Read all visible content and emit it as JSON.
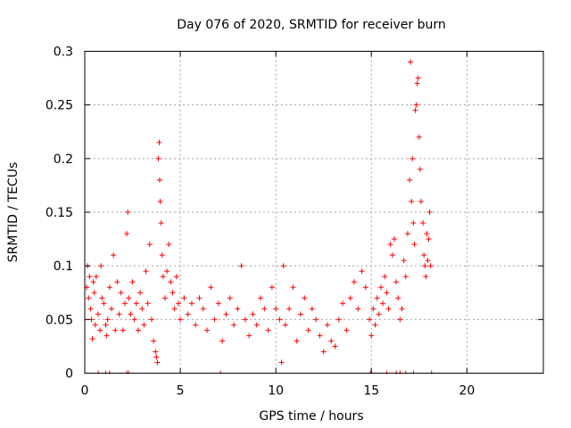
{
  "chart_data": {
    "type": "scatter",
    "title": "Day 076 of 2020, SRMTID for receiver burn",
    "xlabel": "GPS time / hours",
    "ylabel": "SRMTID / TECUs",
    "xlim": [
      0,
      24
    ],
    "ylim": [
      0,
      0.3
    ],
    "xticks": [
      0,
      5,
      10,
      15,
      20
    ],
    "xtick_labels": [
      "0",
      "5",
      "10",
      "15",
      "20"
    ],
    "yticks": [
      0,
      0.05,
      0.1,
      0.15,
      0.2,
      0.25,
      0.3
    ],
    "ytick_labels": [
      "0",
      "0.05",
      "0.1",
      "0.15",
      "0.2",
      "0.25",
      "0.3"
    ],
    "grid": true,
    "marker": "plus",
    "color": "#ff0000",
    "series": [
      {
        "name": "SRMTID",
        "points": [
          [
            0.1,
            0.08
          ],
          [
            0.15,
            0.1
          ],
          [
            0.2,
            0.07
          ],
          [
            0.25,
            0.09
          ],
          [
            0.3,
            0.06
          ],
          [
            0.35,
            0.05
          ],
          [
            0.4,
            0.032
          ],
          [
            0.45,
            0.085
          ],
          [
            0.5,
            0.075
          ],
          [
            0.55,
            0.045
          ],
          [
            0.6,
            0.09
          ],
          [
            0.7,
            0.055
          ],
          [
            0.8,
            0.04
          ],
          [
            0.85,
            0.1
          ],
          [
            0.9,
            0.07
          ],
          [
            1.0,
            0.065
          ],
          [
            1.1,
            0.045
          ],
          [
            1.15,
            0.035
          ],
          [
            1.2,
            0.05
          ],
          [
            1.3,
            0.08
          ],
          [
            1.4,
            0.06
          ],
          [
            1.5,
            0.11
          ],
          [
            1.6,
            0.04
          ],
          [
            1.7,
            0.085
          ],
          [
            1.8,
            0.055
          ],
          [
            1.9,
            0.075
          ],
          [
            2.0,
            0.04
          ],
          [
            2.1,
            0.065
          ],
          [
            2.2,
            0.13
          ],
          [
            2.25,
            0.15
          ],
          [
            2.3,
            0.07
          ],
          [
            2.4,
            0.055
          ],
          [
            2.5,
            0.085
          ],
          [
            2.6,
            0.05
          ],
          [
            2.7,
            0.065
          ],
          [
            2.8,
            0.04
          ],
          [
            2.9,
            0.075
          ],
          [
            3.0,
            0.06
          ],
          [
            3.1,
            0.045
          ],
          [
            3.2,
            0.095
          ],
          [
            3.3,
            0.065
          ],
          [
            3.4,
            0.12
          ],
          [
            3.5,
            0.05
          ],
          [
            3.6,
            0.03
          ],
          [
            3.7,
            0.02
          ],
          [
            3.75,
            0.015
          ],
          [
            3.8,
            0.01
          ],
          [
            3.85,
            0.2
          ],
          [
            3.9,
            0.215
          ],
          [
            3.92,
            0.18
          ],
          [
            3.95,
            0.16
          ],
          [
            4.0,
            0.14
          ],
          [
            4.05,
            0.11
          ],
          [
            4.1,
            0.09
          ],
          [
            4.2,
            0.07
          ],
          [
            4.3,
            0.095
          ],
          [
            4.4,
            0.12
          ],
          [
            4.5,
            0.085
          ],
          [
            4.6,
            0.075
          ],
          [
            4.7,
            0.06
          ],
          [
            4.8,
            0.09
          ],
          [
            4.9,
            0.065
          ],
          [
            5.0,
            0.05
          ],
          [
            5.2,
            0.07
          ],
          [
            5.4,
            0.055
          ],
          [
            5.6,
            0.065
          ],
          [
            5.8,
            0.045
          ],
          [
            6.0,
            0.07
          ],
          [
            6.2,
            0.06
          ],
          [
            6.4,
            0.04
          ],
          [
            6.6,
            0.08
          ],
          [
            6.8,
            0.05
          ],
          [
            7.0,
            0.065
          ],
          [
            7.2,
            0.03
          ],
          [
            7.4,
            0.055
          ],
          [
            7.6,
            0.07
          ],
          [
            7.8,
            0.045
          ],
          [
            8.0,
            0.06
          ],
          [
            8.2,
            0.1
          ],
          [
            8.4,
            0.05
          ],
          [
            8.6,
            0.035
          ],
          [
            8.8,
            0.055
          ],
          [
            9.0,
            0.045
          ],
          [
            9.2,
            0.07
          ],
          [
            9.4,
            0.06
          ],
          [
            9.6,
            0.04
          ],
          [
            9.8,
            0.08
          ],
          [
            10.0,
            0.06
          ],
          [
            10.2,
            0.05
          ],
          [
            10.3,
            0.01
          ],
          [
            10.4,
            0.1
          ],
          [
            10.5,
            0.045
          ],
          [
            10.7,
            0.06
          ],
          [
            10.9,
            0.08
          ],
          [
            11.1,
            0.03
          ],
          [
            11.3,
            0.055
          ],
          [
            11.5,
            0.07
          ],
          [
            11.7,
            0.04
          ],
          [
            11.9,
            0.06
          ],
          [
            12.1,
            0.05
          ],
          [
            12.3,
            0.035
          ],
          [
            12.5,
            0.02
          ],
          [
            12.7,
            0.045
          ],
          [
            12.9,
            0.03
          ],
          [
            13.1,
            0.025
          ],
          [
            13.3,
            0.05
          ],
          [
            13.5,
            0.065
          ],
          [
            13.7,
            0.04
          ],
          [
            13.9,
            0.07
          ],
          [
            14.1,
            0.085
          ],
          [
            14.3,
            0.06
          ],
          [
            14.5,
            0.095
          ],
          [
            14.7,
            0.08
          ],
          [
            14.9,
            0.05
          ],
          [
            15.0,
            0.035
          ],
          [
            15.1,
            0.06
          ],
          [
            15.2,
            0.045
          ],
          [
            15.3,
            0.07
          ],
          [
            15.4,
            0.055
          ],
          [
            15.5,
            0.08
          ],
          [
            15.6,
            0.065
          ],
          [
            15.7,
            0.09
          ],
          [
            15.8,
            0.075
          ],
          [
            15.9,
            0.06
          ],
          [
            16.0,
            0.12
          ],
          [
            16.1,
            0.11
          ],
          [
            16.2,
            0.125
          ],
          [
            16.3,
            0.085
          ],
          [
            16.4,
            0.07
          ],
          [
            16.5,
            0.05
          ],
          [
            16.6,
            0.06
          ],
          [
            16.7,
            0.105
          ],
          [
            16.8,
            0.09
          ],
          [
            16.9,
            0.13
          ],
          [
            17.0,
            0.18
          ],
          [
            17.05,
            0.29
          ],
          [
            17.1,
            0.16
          ],
          [
            17.15,
            0.2
          ],
          [
            17.2,
            0.14
          ],
          [
            17.25,
            0.12
          ],
          [
            17.3,
            0.245
          ],
          [
            17.35,
            0.25
          ],
          [
            17.4,
            0.27
          ],
          [
            17.45,
            0.275
          ],
          [
            17.5,
            0.22
          ],
          [
            17.55,
            0.19
          ],
          [
            17.6,
            0.16
          ],
          [
            17.7,
            0.14
          ],
          [
            17.75,
            0.11
          ],
          [
            17.8,
            0.1
          ],
          [
            17.85,
            0.09
          ],
          [
            17.9,
            0.13
          ],
          [
            17.95,
            0.105
          ],
          [
            18.0,
            0.125
          ],
          [
            18.05,
            0.15
          ],
          [
            18.1,
            0.1
          ]
        ]
      }
    ],
    "baseline_marks_x": [
      0.7,
      1.1,
      1.3,
      2.2,
      2.3,
      7.1,
      14.95,
      15.8,
      16.3,
      16.5,
      16.8,
      17.2,
      18.15
    ]
  }
}
